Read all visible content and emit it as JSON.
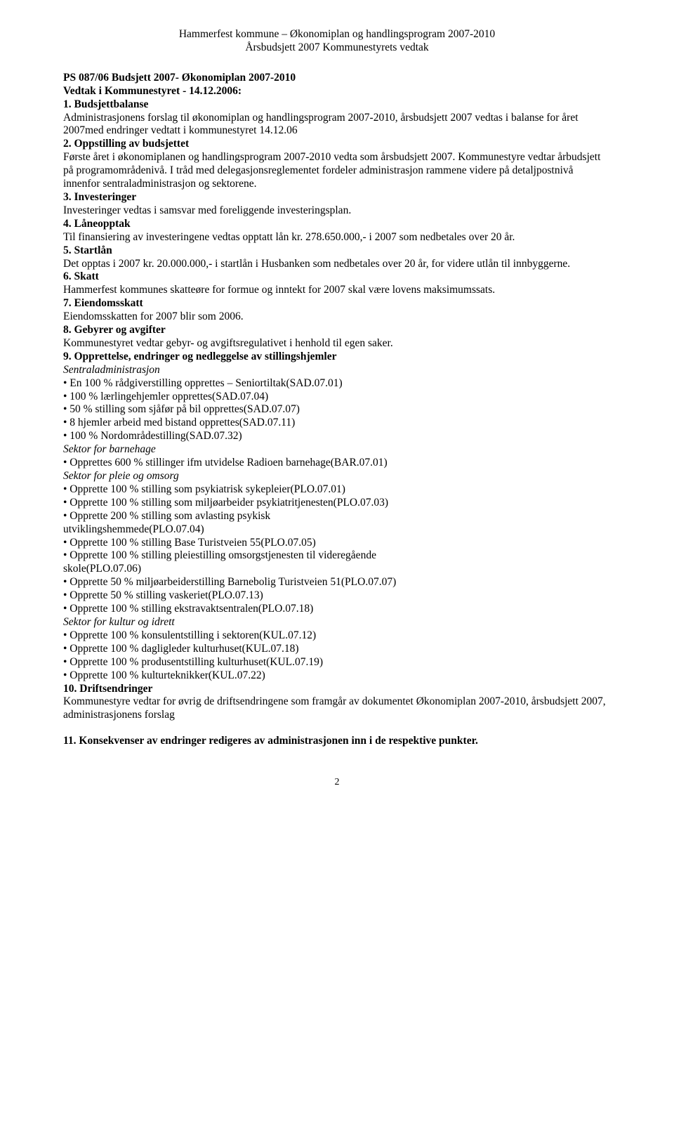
{
  "header": {
    "line1": "Hammerfest kommune – Økonomiplan og handlingsprogram 2007-2010",
    "line2": "Årsbudsjett 2007 Kommunestyrets vedtak"
  },
  "title": {
    "line1": "PS 087/06 Budsjett 2007- Økonomiplan 2007-2010",
    "line2": "Vedtak i Kommunestyret - 14.12.2006:"
  },
  "s1": {
    "heading": "1. Budsjettbalanse",
    "body": "Administrasjonens forslag til økonomiplan og handlingsprogram 2007-2010, årsbudsjett 2007 vedtas i balanse for året 2007med endringer vedtatt i kommunestyret 14.12.06"
  },
  "s2": {
    "heading": "2. Oppstilling av budsjettet",
    "body": "Første året i økonomiplanen og handlingsprogram 2007-2010 vedta som årsbudsjett 2007. Kommunestyre vedtar årbudsjett på programområdenivå. I tråd med delegasjonsreglementet fordeler administrasjon rammene videre på detaljpostnivå innenfor sentraladministrasjon og sektorene."
  },
  "s3": {
    "heading": "3. Investeringer",
    "body": "Investeringer vedtas i samsvar med foreliggende investeringsplan."
  },
  "s4": {
    "heading": "4. Låneopptak",
    "body": "Til finansiering av investeringene vedtas opptatt lån kr. 278.650.000,- i 2007 som nedbetales over 20 år."
  },
  "s5": {
    "heading": "5. Startlån",
    "body": "Det opptas i 2007 kr. 20.000.000,- i startlån i Husbanken som nedbetales over 20 år, for videre utlån til innbyggerne."
  },
  "s6": {
    "heading": "6. Skatt",
    "body": "Hammerfest kommunes skatteøre for formue og inntekt for 2007 skal være lovens maksimumssats."
  },
  "s7": {
    "heading": "7. Eiendomsskatt",
    "body": "Eiendomsskatten for 2007 blir som 2006."
  },
  "s8": {
    "heading": "8. Gebyrer og avgifter",
    "body": "Kommunestyret vedtar gebyr- og avgiftsregulativet i henhold til egen saker."
  },
  "s9": {
    "heading": "9. Opprettelse, endringer og nedleggelse av stillingshjemler",
    "sentraladm": {
      "label": "Sentraladministrasjon",
      "i1": "• En 100 % rådgiverstilling opprettes – Seniortiltak(SAD.07.01)",
      "i2": "• 100 % lærlingehjemler opprettes(SAD.07.04)",
      "i3": "• 50 % stilling som sjåfør på bil opprettes(SAD.07.07)",
      "i4": "• 8 hjemler arbeid med bistand opprettes(SAD.07.11)",
      "i5": "• 100 % Nordområdestilling(SAD.07.32)"
    },
    "barnehage": {
      "label": "Sektor for barnehage",
      "i1": "• Opprettes 600 % stillinger ifm utvidelse Radioen barnehage(BAR.07.01)"
    },
    "pleie": {
      "label": "Sektor for pleie og omsorg",
      "i1": "• Opprette 100 % stilling som psykiatrisk sykepleier(PLO.07.01)",
      "i2": "• Opprette 100 % stilling som miljøarbeider psykiatritjenesten(PLO.07.03)",
      "i3": "• Opprette 200 % stilling som avlasting psykisk",
      "i4": "utviklingshemmede(PLO.07.04)",
      "i5": "• Opprette 100 % stilling Base Turistveien 55(PLO.07.05)",
      "i6": "• Opprette 100 % stilling pleiestilling omsorgstjenesten til videregående",
      "i7": "skole(PLO.07.06)",
      "i8": "• Opprette 50 % miljøarbeiderstilling Barnebolig Turistveien 51(PLO.07.07)",
      "i9": "• Opprette 50 % stilling vaskeriet(PLO.07.13)",
      "i10": "• Opprette 100 % stilling ekstravaktsentralen(PLO.07.18)"
    },
    "kultur": {
      "label": "Sektor for kultur og idrett",
      "i1": "• Opprette 100 % konsulentstilling i sektoren(KUL.07.12)",
      "i2": "• Opprette 100 % dagligleder kulturhuset(KUL.07.18)",
      "i3": "• Opprette 100 % produsentstilling kulturhuset(KUL.07.19)",
      "i4": "• Opprette 100 % kulturteknikker(KUL.07.22)"
    }
  },
  "s10": {
    "heading": "10. Driftsendringer",
    "body": "Kommunestyre vedtar for øvrig de driftsendringene som framgår av dokumentet Økonomiplan 2007-2010, årsbudsjett 2007, administrasjonens forslag"
  },
  "s11": {
    "heading": "11. Konsekvenser av endringer redigeres av administrasjonen inn i de respektive punkter."
  },
  "pageNum": "2"
}
